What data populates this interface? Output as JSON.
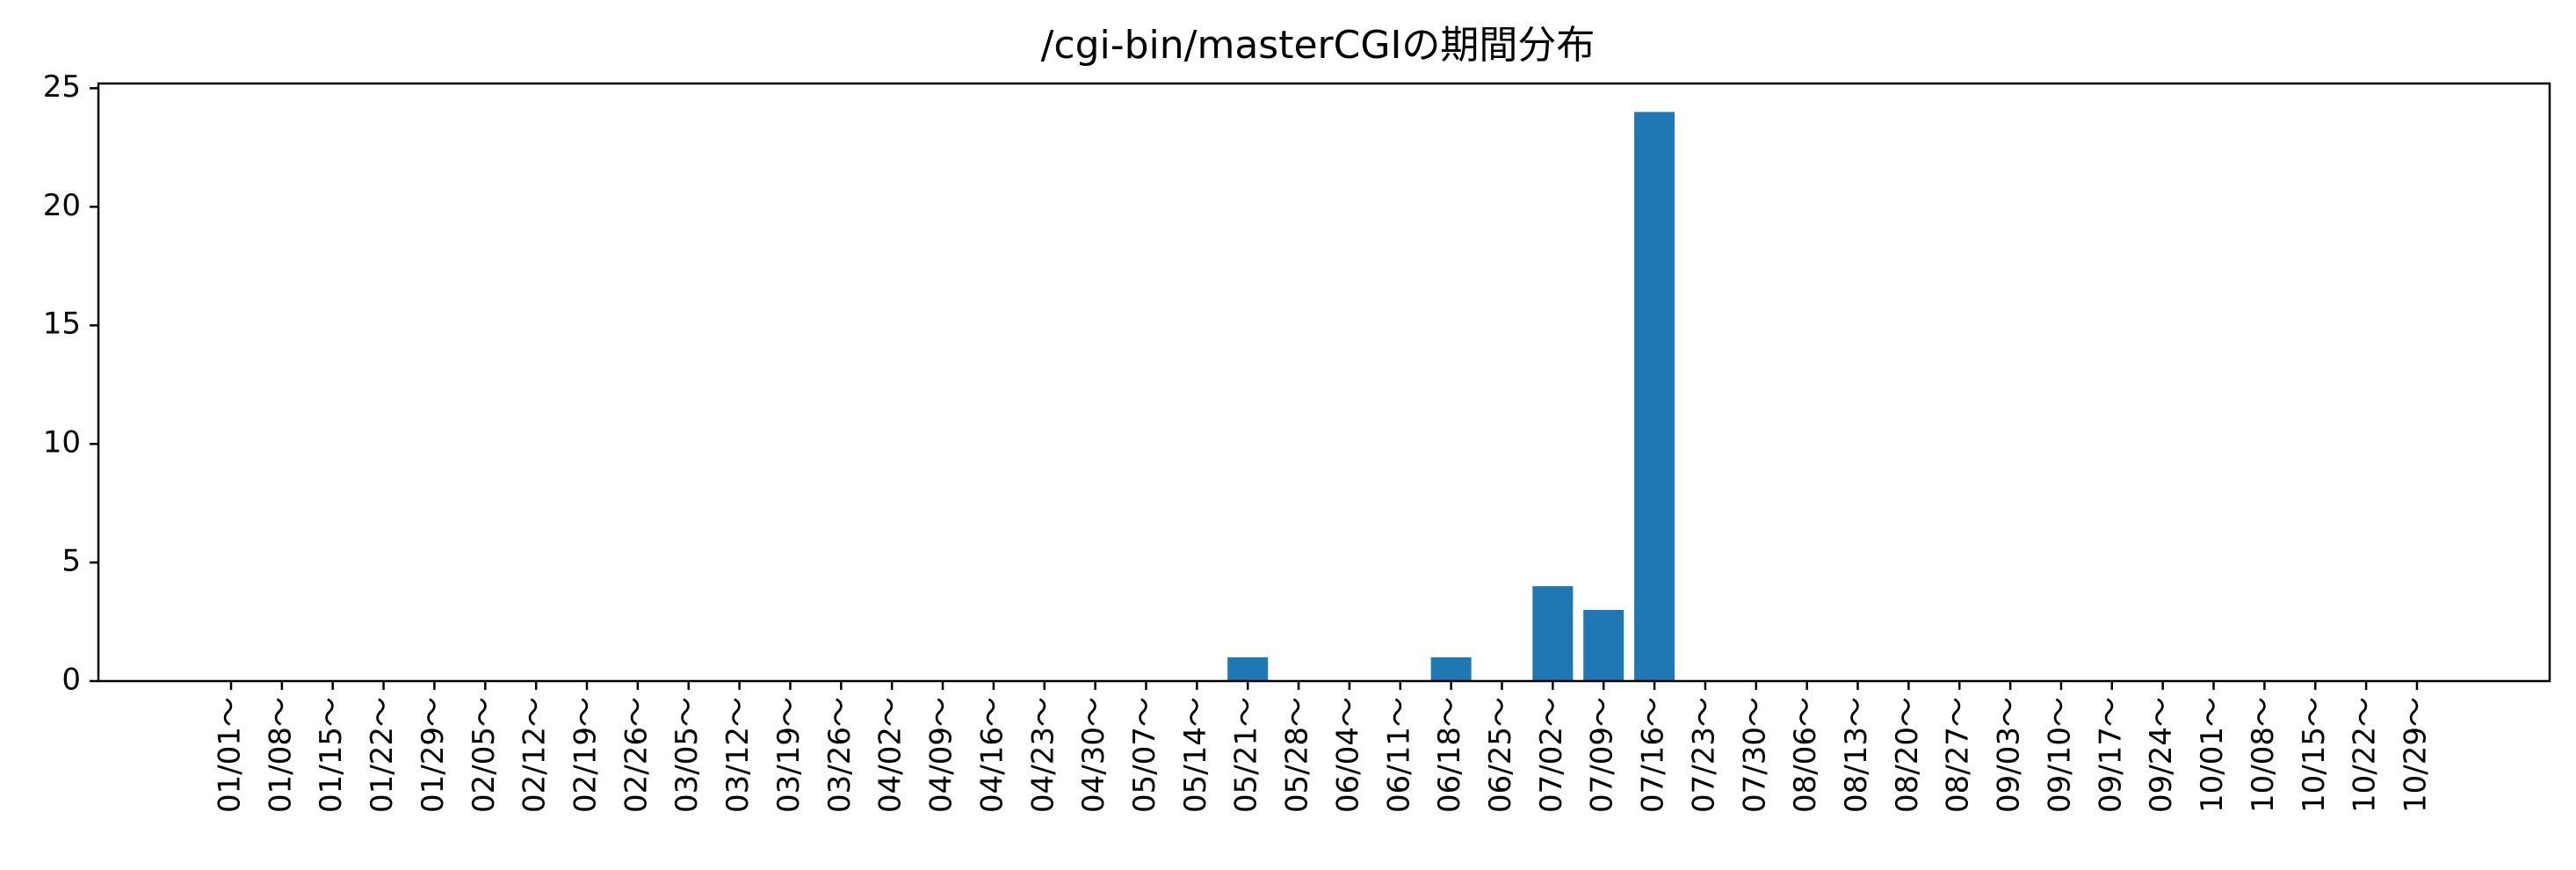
{
  "chart_data": {
    "type": "bar",
    "title": "/cgi-bin/masterCGIの期間分布",
    "xlabel": "",
    "ylabel": "",
    "categories": [
      "01/01～",
      "01/08～",
      "01/15～",
      "01/22～",
      "01/29～",
      "02/05～",
      "02/12～",
      "02/19～",
      "02/26～",
      "03/05～",
      "03/12～",
      "03/19～",
      "03/26～",
      "04/02～",
      "04/09～",
      "04/16～",
      "04/23～",
      "04/30～",
      "05/07～",
      "05/14～",
      "05/21～",
      "05/28～",
      "06/04～",
      "06/11～",
      "06/18～",
      "06/25～",
      "07/02～",
      "07/09～",
      "07/16～",
      "07/23～",
      "07/30～",
      "08/06～",
      "08/13～",
      "08/20～",
      "08/27～",
      "09/03～",
      "09/10～",
      "09/17～",
      "09/24～",
      "10/01～",
      "10/08～",
      "10/15～",
      "10/22～",
      "10/29～"
    ],
    "values": [
      0,
      0,
      0,
      0,
      0,
      0,
      0,
      0,
      0,
      0,
      0,
      0,
      0,
      0,
      0,
      0,
      0,
      0,
      0,
      0,
      1,
      0,
      0,
      0,
      1,
      0,
      4,
      3,
      24,
      0,
      0,
      0,
      0,
      0,
      0,
      0,
      0,
      0,
      0,
      0,
      0,
      0,
      0,
      0
    ],
    "yticks": [
      "0",
      "5",
      "10",
      "15",
      "20",
      "25"
    ],
    "ylim": [
      0,
      25.2
    ],
    "bar_color": "#1f77b4",
    "grid": false,
    "legend": "none"
  }
}
